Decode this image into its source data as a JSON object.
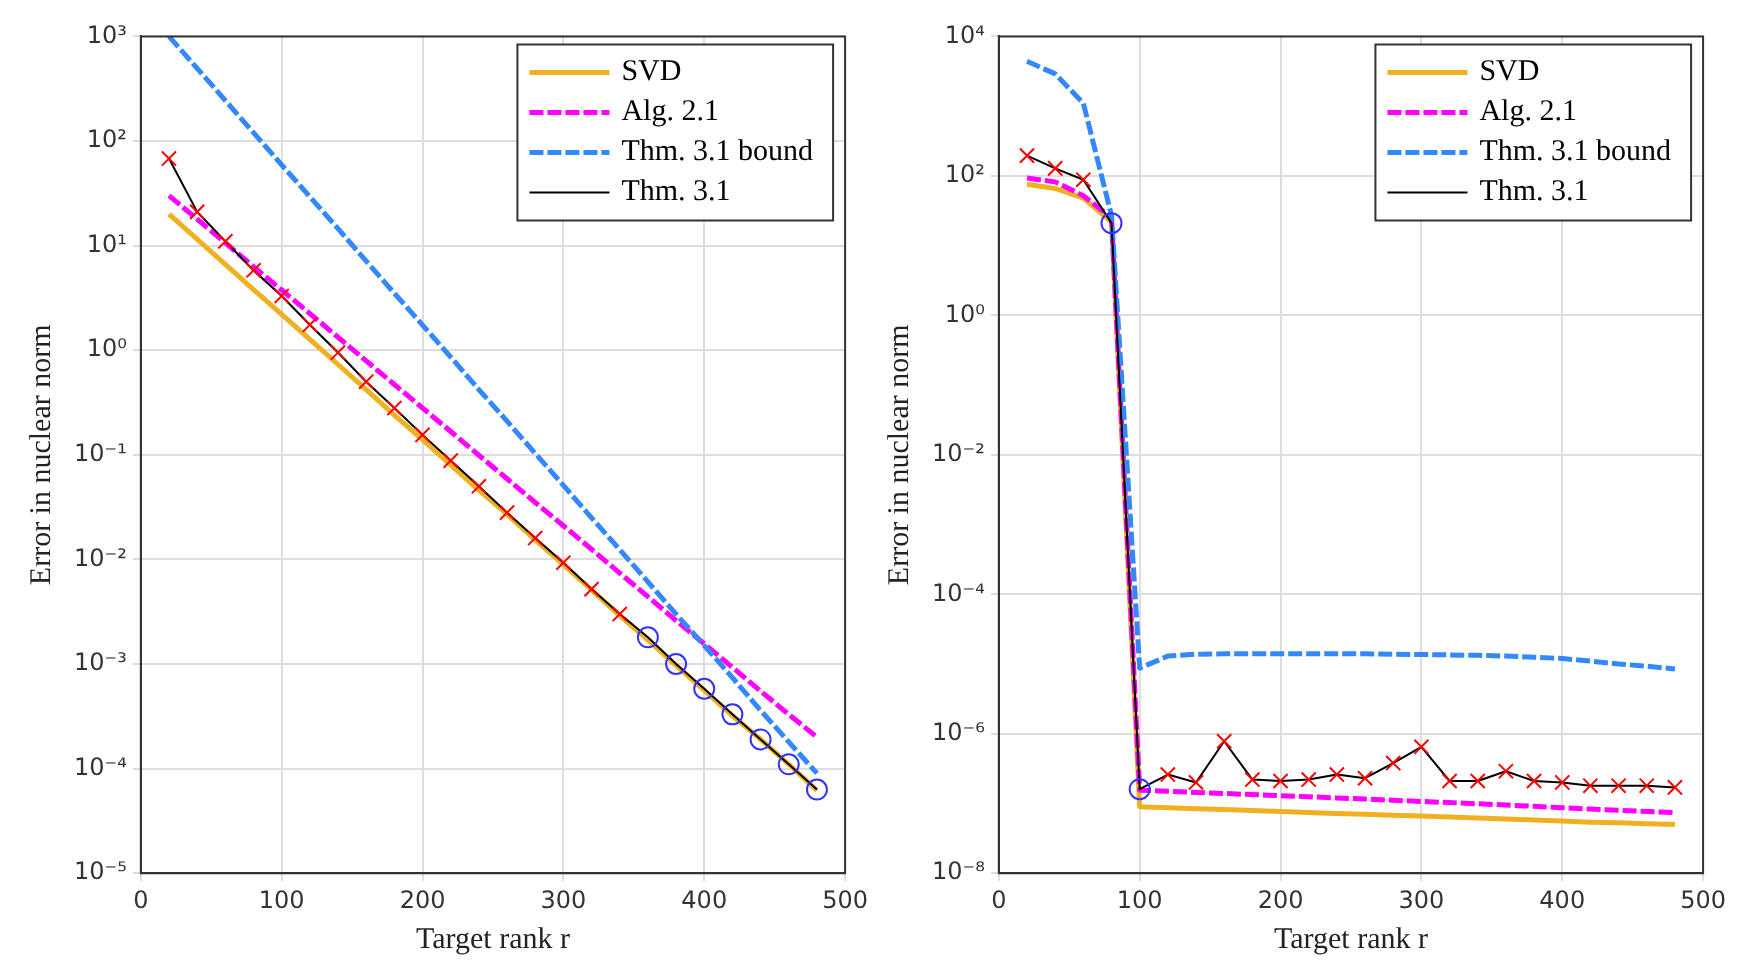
{
  "chart_data": [
    {
      "type": "line",
      "xlabel": "Target rank r",
      "ylabel": "Error in nuclear norm",
      "log": "y",
      "grid": true,
      "legend": "top right",
      "xlim": [
        0,
        500
      ],
      "xticks": [
        0,
        100,
        200,
        300,
        400,
        500
      ],
      "ylim": [
        1e-05,
        1000
      ],
      "yticks": [
        {
          "value": 1e-05,
          "label": "10⁻⁵"
        },
        {
          "value": 0.0001,
          "label": "10⁻⁴"
        },
        {
          "value": 0.001,
          "label": "10⁻³"
        },
        {
          "value": 0.01,
          "label": "10⁻²"
        },
        {
          "value": 0.1,
          "label": "10⁻¹"
        },
        {
          "value": 1,
          "label": "10⁰"
        },
        {
          "value": 10,
          "label": "10¹"
        },
        {
          "value": 100,
          "label": "10²"
        },
        {
          "value": 1000,
          "label": "10³"
        }
      ],
      "x": [
        20,
        40,
        60,
        80,
        100,
        120,
        140,
        160,
        180,
        200,
        220,
        240,
        260,
        280,
        300,
        320,
        340,
        360,
        380,
        400,
        420,
        440,
        460,
        480
      ],
      "series": [
        {
          "name": "SVD",
          "color": "#f0b020",
          "line_style": "solid",
          "marker": "none",
          "values": [
            20,
            11.5,
            6.6,
            3.8,
            2.2,
            1.27,
            0.73,
            0.42,
            0.24,
            0.14,
            0.08,
            0.046,
            0.027,
            0.0154,
            0.0089,
            0.0051,
            0.0029,
            0.0017,
            0.00097,
            0.00056,
            0.00032,
            0.00019,
            0.00011,
            6.2e-05
          ]
        },
        {
          "name": "Alg. 2.1",
          "color": "#ff00ff",
          "line_style": "dashed",
          "marker": "none",
          "values": [
            30,
            17.9,
            10.6,
            6.3,
            3.76,
            2.24,
            1.33,
            0.79,
            0.47,
            0.28,
            0.167,
            0.099,
            0.059,
            0.035,
            0.021,
            0.0125,
            0.0074,
            0.0044,
            0.0026,
            0.00156,
            0.00093,
            0.00055,
            0.00033,
            0.0002
          ]
        },
        {
          "name": "Thm. 3.1 bound",
          "color": "#3388ff",
          "line_style": "dashed",
          "marker": "none",
          "values": [
            1000,
            494,
            244,
            120,
            59,
            29.3,
            14.5,
            7.1,
            3.5,
            1.74,
            0.86,
            0.42,
            0.21,
            0.103,
            0.051,
            0.025,
            0.0124,
            0.0061,
            0.003,
            0.0015,
            0.00074,
            0.00036,
            0.00018,
            9e-05
          ]
        },
        {
          "name": "Thm. 3.1",
          "color": "#000000",
          "line_style": "solid",
          "marker": "none",
          "values": [
            68,
            21,
            11,
            5.8,
            3.3,
            1.75,
            0.95,
            0.5,
            0.28,
            0.155,
            0.088,
            0.05,
            0.028,
            0.016,
            0.0093,
            0.0052,
            0.003,
            0.0018,
            0.001,
            0.00058,
            0.00033,
            0.00019,
            0.00011,
            6.3e-05
          ]
        },
        {
          "type": "scatter",
          "color": "#ff0000",
          "marker": "cross",
          "x": [
            20,
            40,
            60,
            80,
            100,
            120,
            140,
            160,
            180,
            200,
            220,
            240,
            260,
            280,
            300,
            320,
            340
          ],
          "values": [
            68,
            21,
            11,
            5.8,
            3.3,
            1.75,
            0.95,
            0.5,
            0.28,
            0.155,
            0.088,
            0.05,
            0.028,
            0.016,
            0.0093,
            0.0052,
            0.003
          ]
        },
        {
          "type": "scatter",
          "color": "#3333ff",
          "marker": "circle",
          "x": [
            360,
            380,
            400,
            420,
            440,
            460,
            480
          ],
          "values": [
            0.0018,
            0.001,
            0.00058,
            0.00033,
            0.00019,
            0.00011,
            6.3e-05
          ]
        }
      ]
    },
    {
      "type": "line",
      "xlabel": "Target rank r",
      "ylabel": "Error in nuclear norm",
      "log": "y",
      "grid": true,
      "legend": "top right",
      "xlim": [
        0,
        500
      ],
      "xticks": [
        0,
        100,
        200,
        300,
        400,
        500
      ],
      "ylim": [
        1e-08,
        10000
      ],
      "yticks": [
        {
          "value": 1e-08,
          "label": "10⁻⁸"
        },
        {
          "value": 1e-06,
          "label": "10⁻⁶"
        },
        {
          "value": 0.0001,
          "label": "10⁻⁴"
        },
        {
          "value": 0.01,
          "label": "10⁻²"
        },
        {
          "value": 1,
          "label": "10⁰"
        },
        {
          "value": 100,
          "label": "10²"
        },
        {
          "value": 10000,
          "label": "10⁴"
        }
      ],
      "x": [
        20,
        40,
        60,
        80,
        100,
        120,
        140,
        160,
        180,
        200,
        220,
        240,
        260,
        280,
        300,
        320,
        340,
        360,
        380,
        400,
        420,
        440,
        460,
        480
      ],
      "series": [
        {
          "name": "SVD",
          "color": "#f0b020",
          "line_style": "solid",
          "marker": "none",
          "values": [
            76,
            66,
            48,
            22,
            9e-08,
            8.7e-08,
            8.4e-08,
            8.2e-08,
            7.9e-08,
            7.7e-08,
            7.4e-08,
            7.2e-08,
            7e-08,
            6.8e-08,
            6.6e-08,
            6.4e-08,
            6.2e-08,
            6e-08,
            5.8e-08,
            5.6e-08,
            5.4e-08,
            5.3e-08,
            5.1e-08,
            5e-08
          ]
        },
        {
          "name": "Alg. 2.1",
          "color": "#ff00ff",
          "line_style": "dashed",
          "marker": "none",
          "values": [
            93,
            82,
            52,
            25,
            1.55e-07,
            1.5e-07,
            1.44e-07,
            1.39e-07,
            1.34e-07,
            1.29e-07,
            1.25e-07,
            1.2e-07,
            1.16e-07,
            1.11e-07,
            1.07e-07,
            1.03e-07,
            9.9e-08,
            9.5e-08,
            9.1e-08,
            8.7e-08,
            8.3e-08,
            8e-08,
            7.7e-08,
            7.4e-08
          ]
        },
        {
          "name": "Thm. 3.1 bound",
          "color": "#3388ff",
          "line_style": "dashed",
          "marker": "none",
          "values": [
            4400,
            2900,
            1100,
            27,
            8.7e-06,
            1.3e-05,
            1.38e-05,
            1.4e-05,
            1.4e-05,
            1.4e-05,
            1.4e-05,
            1.4e-05,
            1.4e-05,
            1.38e-05,
            1.37e-05,
            1.35e-05,
            1.33e-05,
            1.3e-05,
            1.25e-05,
            1.2e-05,
            1.1e-05,
            1e-05,
            9.3e-06,
            8.5e-06
          ]
        },
        {
          "name": "Thm. 3.1",
          "color": "#000000",
          "line_style": "solid",
          "marker": "none",
          "values": [
            195,
            128,
            88,
            21,
            1.6e-07,
            2.6e-07,
            2e-07,
            7.8e-07,
            2.2e-07,
            2.1e-07,
            2.2e-07,
            2.6e-07,
            2.3e-07,
            3.8e-07,
            6.5e-07,
            2.1e-07,
            2.1e-07,
            2.9e-07,
            2.1e-07,
            2e-07,
            1.8e-07,
            1.8e-07,
            1.8e-07,
            1.7e-07
          ]
        },
        {
          "type": "scatter",
          "color": "#ff0000",
          "marker": "cross",
          "x": [
            20,
            40,
            60,
            120,
            140,
            160,
            180,
            200,
            220,
            240,
            260,
            280,
            300,
            320,
            340,
            360,
            380,
            400,
            420,
            440,
            460,
            480
          ],
          "values": [
            195,
            128,
            88,
            2.6e-07,
            2e-07,
            7.8e-07,
            2.2e-07,
            2.1e-07,
            2.2e-07,
            2.6e-07,
            2.3e-07,
            3.8e-07,
            6.5e-07,
            2.1e-07,
            2.1e-07,
            2.9e-07,
            2.1e-07,
            2e-07,
            1.8e-07,
            1.8e-07,
            1.8e-07,
            1.7e-07
          ]
        },
        {
          "type": "scatter",
          "color": "#3333ff",
          "marker": "circle",
          "x": [
            80,
            100
          ],
          "values": [
            21,
            1.6e-07
          ]
        }
      ]
    }
  ]
}
